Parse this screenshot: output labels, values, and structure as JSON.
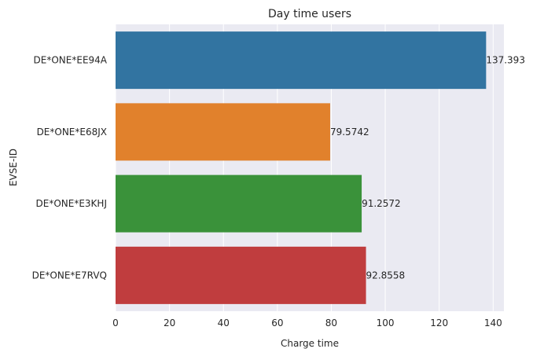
{
  "chart_data": {
    "type": "bar",
    "orientation": "horizontal",
    "title": "Day time users",
    "xlabel": "Charge time",
    "ylabel": "EVSE-ID",
    "xlim": [
      0,
      144
    ],
    "xticks": [
      0,
      20,
      40,
      60,
      80,
      100,
      120,
      140
    ],
    "grid": true,
    "categories": [
      "DE*ONE*EE94A",
      "DE*ONE*E68JX",
      "DE*ONE*E3KHJ",
      "DE*ONE*E7RVQ"
    ],
    "values": [
      137.393,
      79.5742,
      91.2572,
      92.8558
    ],
    "value_labels": [
      "137.393",
      "79.5742",
      "91.2572",
      "92.8558"
    ],
    "colors": [
      "#3274a1",
      "#e1812c",
      "#3a923a",
      "#c03d3e"
    ],
    "background": "#eaeaf2",
    "grid_color": "#ffffff"
  }
}
